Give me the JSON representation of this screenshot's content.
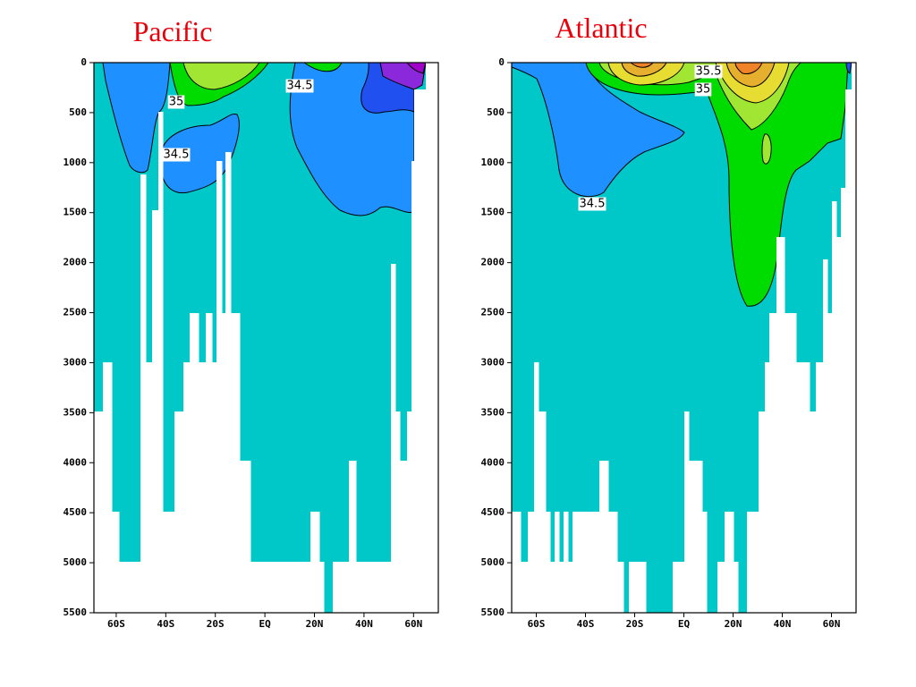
{
  "chart_data": [
    {
      "type": "contour",
      "title": "Pacific",
      "xlim": [
        -69,
        70
      ],
      "ylim": [
        5500,
        0
      ],
      "xticks": [
        {
          "value": -60,
          "label": "60S"
        },
        {
          "value": -40,
          "label": "40S"
        },
        {
          "value": -20,
          "label": "20S"
        },
        {
          "value": 0,
          "label": "EQ"
        },
        {
          "value": 20,
          "label": "20N"
        },
        {
          "value": 40,
          "label": "40N"
        },
        {
          "value": 60,
          "label": "60N"
        }
      ],
      "yticks": [
        0,
        500,
        1000,
        1500,
        2000,
        2500,
        3000,
        3500,
        4000,
        4500,
        5000,
        5500
      ],
      "contour_labels": [
        35,
        34.5,
        34.5
      ]
    },
    {
      "type": "contour",
      "title": "Atlantic",
      "xlim": [
        -70,
        70
      ],
      "ylim": [
        5500,
        0
      ],
      "xticks": [
        {
          "value": -60,
          "label": "60S"
        },
        {
          "value": -40,
          "label": "40S"
        },
        {
          "value": -20,
          "label": "20S"
        },
        {
          "value": 0,
          "label": "EQ"
        },
        {
          "value": 20,
          "label": "20N"
        },
        {
          "value": 40,
          "label": "40N"
        },
        {
          "value": 60,
          "label": "60N"
        }
      ],
      "yticks": [
        0,
        500,
        1000,
        1500,
        2000,
        2500,
        3000,
        3500,
        4000,
        4500,
        5000,
        5500
      ],
      "contour_labels": [
        35.5,
        35,
        34.5
      ]
    }
  ]
}
